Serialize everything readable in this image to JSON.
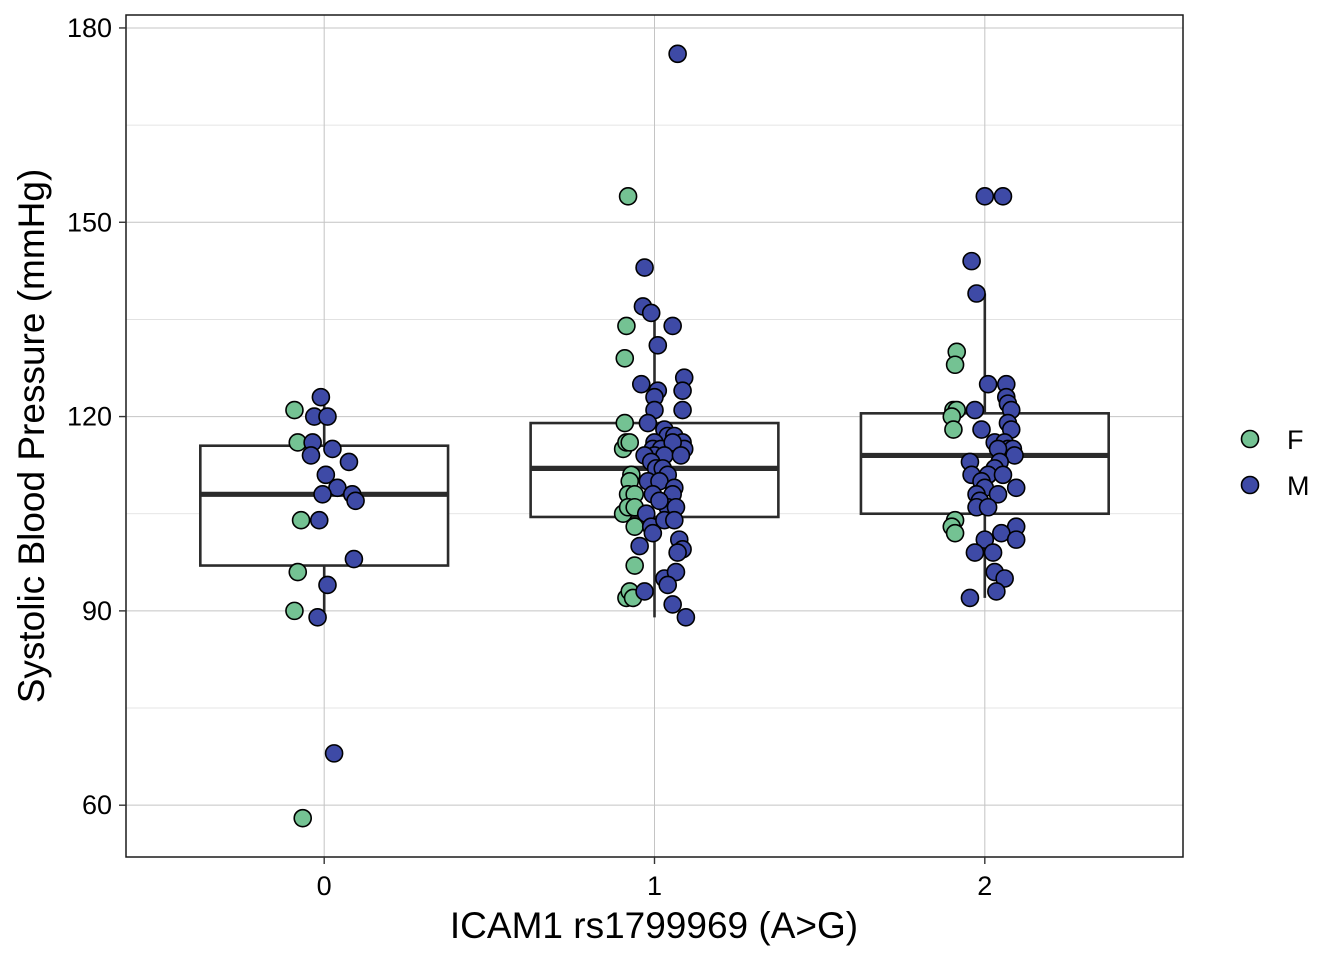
{
  "chart_data": {
    "type": "boxplot-jitter",
    "xlabel": "ICAM1 rs1799969 (A>G)",
    "ylabel": "Systolic Blood Pressure (mmHg)",
    "x_categories": [
      "0",
      "1",
      "2"
    ],
    "x_tick_labels": [
      "0",
      "1",
      "2"
    ],
    "y_ticks": [
      60,
      90,
      120,
      150,
      180
    ],
    "y_tick_labels": [
      "60",
      "90",
      "120",
      "150",
      "180"
    ],
    "xlim": [
      -0.6,
      2.6
    ],
    "ylim": [
      52,
      182
    ],
    "grid": true,
    "legend": {
      "position": "right",
      "entries": [
        {
          "label": "F",
          "color": "#74c293"
        },
        {
          "label": "M",
          "color": "#3e4aa6"
        }
      ]
    },
    "boxes": [
      {
        "category": 0,
        "lower_whisker": 89,
        "q1": 97,
        "median": 108,
        "q3": 115.5,
        "upper_whisker": 123
      },
      {
        "category": 1,
        "lower_whisker": 89,
        "q1": 104.5,
        "median": 112,
        "q3": 119,
        "upper_whisker": 137
      },
      {
        "category": 2,
        "lower_whisker": 92,
        "q1": 105,
        "median": 114,
        "q3": 120.5,
        "upper_whisker": 139
      }
    ],
    "series": [
      {
        "name": "F",
        "color": "#74c293",
        "points": [
          [
            -0.09,
            121
          ],
          [
            -0.08,
            116
          ],
          [
            -0.07,
            104
          ],
          [
            -0.08,
            96
          ],
          [
            -0.09,
            90
          ],
          [
            -0.065,
            58
          ],
          [
            0.92,
            154
          ],
          [
            0.915,
            134
          ],
          [
            0.91,
            129
          ],
          [
            0.91,
            119
          ],
          [
            0.905,
            115
          ],
          [
            0.915,
            116
          ],
          [
            0.925,
            116
          ],
          [
            0.93,
            111
          ],
          [
            0.925,
            110
          ],
          [
            0.92,
            108
          ],
          [
            0.94,
            108
          ],
          [
            0.905,
            105
          ],
          [
            0.92,
            106
          ],
          [
            0.94,
            106
          ],
          [
            0.94,
            103
          ],
          [
            0.94,
            97
          ],
          [
            0.915,
            92
          ],
          [
            0.925,
            93
          ],
          [
            0.935,
            92
          ],
          [
            1.915,
            130
          ],
          [
            1.91,
            128
          ],
          [
            1.905,
            121
          ],
          [
            1.915,
            121
          ],
          [
            1.9,
            120
          ],
          [
            1.905,
            118
          ],
          [
            1.91,
            104
          ],
          [
            1.9,
            103
          ],
          [
            1.91,
            102
          ]
        ]
      },
      {
        "name": "M",
        "color": "#3e4aa6",
        "points": [
          [
            -0.01,
            123
          ],
          [
            -0.03,
            120
          ],
          [
            0.01,
            120
          ],
          [
            -0.035,
            116
          ],
          [
            0.025,
            115
          ],
          [
            -0.04,
            114
          ],
          [
            0.075,
            113
          ],
          [
            0.005,
            111
          ],
          [
            0.04,
            109
          ],
          [
            -0.005,
            108
          ],
          [
            0.085,
            108
          ],
          [
            0.095,
            107
          ],
          [
            -0.015,
            104
          ],
          [
            0.09,
            98
          ],
          [
            0.01,
            94
          ],
          [
            -0.02,
            89
          ],
          [
            0.03,
            68
          ],
          [
            1.07,
            176
          ],
          [
            0.97,
            143
          ],
          [
            0.965,
            137
          ],
          [
            0.99,
            136
          ],
          [
            1.055,
            134
          ],
          [
            1.01,
            131
          ],
          [
            0.96,
            125
          ],
          [
            1.09,
            126
          ],
          [
            1.01,
            124
          ],
          [
            1.085,
            124
          ],
          [
            1.0,
            123
          ],
          [
            1.0,
            121
          ],
          [
            1.085,
            121
          ],
          [
            1.03,
            118
          ],
          [
            0.98,
            119
          ],
          [
            1.04,
            117
          ],
          [
            1.06,
            117
          ],
          [
            1.0,
            116
          ],
          [
            1.085,
            116
          ],
          [
            0.995,
            115
          ],
          [
            1.02,
            115
          ],
          [
            1.09,
            115
          ],
          [
            1.055,
            116
          ],
          [
            1.0,
            114
          ],
          [
            0.97,
            114
          ],
          [
            1.03,
            114
          ],
          [
            1.08,
            114
          ],
          [
            0.99,
            113
          ],
          [
            1.005,
            112
          ],
          [
            1.025,
            112
          ],
          [
            1.04,
            111
          ],
          [
            0.98,
            110
          ],
          [
            1.015,
            110
          ],
          [
            1.06,
            109
          ],
          [
            0.995,
            108
          ],
          [
            1.055,
            108
          ],
          [
            1.04,
            106
          ],
          [
            1.065,
            106
          ],
          [
            0.975,
            105
          ],
          [
            1.015,
            107
          ],
          [
            0.99,
            103
          ],
          [
            1.03,
            104
          ],
          [
            1.06,
            104
          ],
          [
            0.995,
            102
          ],
          [
            0.955,
            100
          ],
          [
            1.075,
            101
          ],
          [
            1.085,
            99.5
          ],
          [
            1.07,
            99
          ],
          [
            1.03,
            95
          ],
          [
            1.065,
            96
          ],
          [
            1.04,
            94
          ],
          [
            0.97,
            93
          ],
          [
            1.055,
            91
          ],
          [
            1.095,
            89
          ],
          [
            2.055,
            154
          ],
          [
            2.0,
            154
          ],
          [
            1.96,
            144
          ],
          [
            1.975,
            139
          ],
          [
            2.01,
            125
          ],
          [
            2.065,
            125
          ],
          [
            2.065,
            123
          ],
          [
            2.07,
            122
          ],
          [
            2.08,
            121
          ],
          [
            1.97,
            121
          ],
          [
            2.07,
            119
          ],
          [
            1.99,
            118
          ],
          [
            2.08,
            118
          ],
          [
            2.03,
            116
          ],
          [
            2.06,
            116
          ],
          [
            2.07,
            115
          ],
          [
            2.085,
            115
          ],
          [
            2.09,
            114
          ],
          [
            2.04,
            115
          ],
          [
            2.045,
            113
          ],
          [
            1.955,
            113
          ],
          [
            2.03,
            112
          ],
          [
            1.96,
            111
          ],
          [
            2.01,
            111
          ],
          [
            2.055,
            111
          ],
          [
            1.99,
            110
          ],
          [
            2.0,
            109
          ],
          [
            2.095,
            109
          ],
          [
            1.975,
            108
          ],
          [
            2.04,
            108
          ],
          [
            1.985,
            107
          ],
          [
            1.975,
            106
          ],
          [
            2.01,
            106
          ],
          [
            2.095,
            103
          ],
          [
            2.05,
            102
          ],
          [
            2.095,
            101
          ],
          [
            2.0,
            101
          ],
          [
            1.97,
            99
          ],
          [
            2.025,
            99
          ],
          [
            2.03,
            96
          ],
          [
            2.06,
            95
          ],
          [
            2.035,
            93
          ],
          [
            1.955,
            92
          ]
        ]
      }
    ]
  }
}
